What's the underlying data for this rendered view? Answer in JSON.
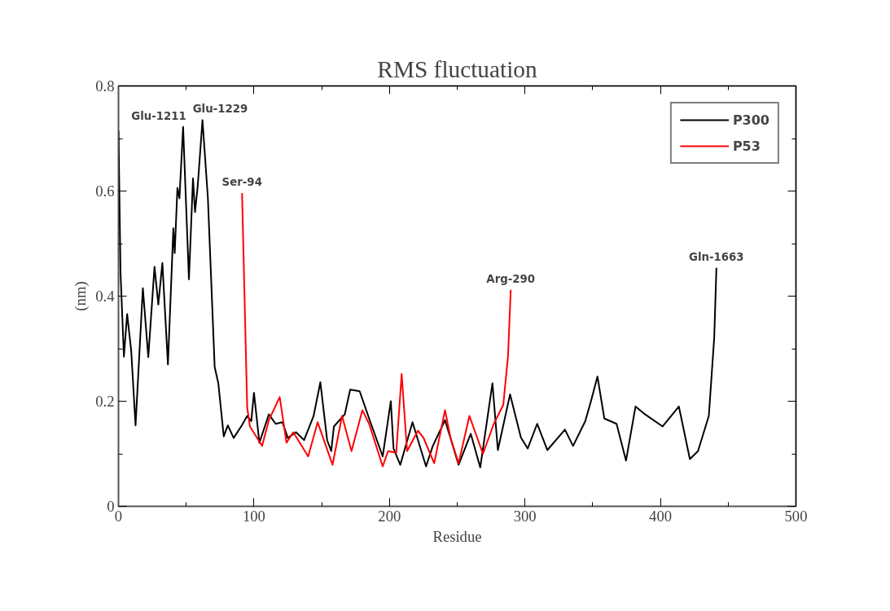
{
  "chart_data": {
    "type": "line",
    "title": "RMS fluctuation",
    "xlabel": "Residue",
    "ylabel": "(nm)",
    "xlim": [
      0,
      500
    ],
    "xticks": [
      0,
      100,
      200,
      300,
      400,
      500
    ],
    "ylim": [
      0,
      0.8
    ],
    "yticks": [
      0,
      0.2,
      0.4,
      0.6,
      0.8
    ],
    "grid": false,
    "legend": "top right",
    "marker": "none",
    "line_style": "solid",
    "series": [
      {
        "name": "P300",
        "color": "#000000",
        "x": [
          0,
          1.5,
          4,
          6.4,
          9.4,
          12.6,
          18,
          22,
          26.6,
          29.4,
          32.4,
          36.5,
          40.5,
          41.5,
          43.5,
          45,
          47.7,
          52,
          55,
          56.5,
          58.5,
          62,
          66,
          71,
          73.7,
          77.7,
          80.7,
          85,
          91,
          95,
          98,
          100,
          104,
          111,
          116,
          121,
          125,
          131,
          137,
          144,
          149,
          154,
          157,
          159,
          167,
          171,
          178,
          185,
          195,
          201,
          203,
          208,
          217,
          227,
          232,
          241,
          251,
          260,
          267,
          276,
          280,
          289,
          297,
          302,
          309,
          316.5,
          329.5,
          335.5,
          344.5,
          348.5,
          353.5,
          358.6,
          367.6,
          374.6,
          381.6,
          387.6,
          401.6,
          413.6,
          421.7,
          427.7,
          435.7,
          439.7,
          441.3
        ],
        "values": [
          0.715,
          0.446,
          0.285,
          0.366,
          0.296,
          0.154,
          0.415,
          0.284,
          0.456,
          0.384,
          0.463,
          0.27,
          0.529,
          0.482,
          0.606,
          0.586,
          0.722,
          0.432,
          0.624,
          0.56,
          0.61,
          0.735,
          0.586,
          0.265,
          0.234,
          0.133,
          0.154,
          0.13,
          0.154,
          0.172,
          0.162,
          0.216,
          0.121,
          0.175,
          0.157,
          0.16,
          0.13,
          0.141,
          0.126,
          0.172,
          0.236,
          0.126,
          0.105,
          0.152,
          0.175,
          0.222,
          0.219,
          0.167,
          0.095,
          0.2,
          0.11,
          0.079,
          0.16,
          0.076,
          0.115,
          0.164,
          0.079,
          0.138,
          0.074,
          0.234,
          0.107,
          0.213,
          0.131,
          0.11,
          0.157,
          0.107,
          0.146,
          0.115,
          0.162,
          0.198,
          0.247,
          0.167,
          0.157,
          0.087,
          0.19,
          0.177,
          0.152,
          0.19,
          0.09,
          0.105,
          0.172,
          0.322,
          0.454
        ]
      },
      {
        "name": "P53",
        "color": "#ff0000",
        "x": [
          91.2,
          95,
          97,
          106,
          111,
          119,
          124,
          129,
          140,
          147,
          158,
          165,
          172,
          180,
          185,
          195,
          199,
          205,
          209,
          213,
          221,
          225,
          233,
          241,
          245,
          251,
          259,
          269,
          277,
          284,
          287.5,
          289.5
        ],
        "values": [
          0.596,
          0.188,
          0.152,
          0.115,
          0.164,
          0.208,
          0.121,
          0.141,
          0.095,
          0.16,
          0.079,
          0.172,
          0.105,
          0.183,
          0.157,
          0.076,
          0.105,
          0.102,
          0.252,
          0.105,
          0.144,
          0.131,
          0.082,
          0.183,
          0.131,
          0.082,
          0.172,
          0.1,
          0.157,
          0.193,
          0.286,
          0.412
        ]
      }
    ],
    "annotations": [
      {
        "text": "Glu-1211",
        "x": 47.7,
        "y": 0.722
      },
      {
        "text": "Glu-1229",
        "x": 62,
        "y": 0.735
      },
      {
        "text": "Ser-94",
        "x": 91.2,
        "y": 0.596
      },
      {
        "text": "Arg-290",
        "x": 289.5,
        "y": 0.412
      },
      {
        "text": "Gln-1663",
        "x": 441.3,
        "y": 0.454
      }
    ]
  }
}
